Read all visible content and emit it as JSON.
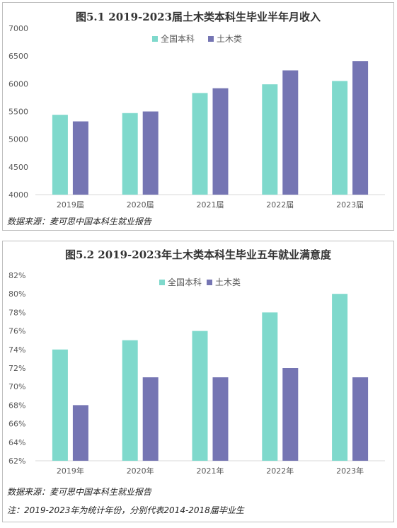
{
  "chart_data": [
    {
      "type": "bar",
      "title": "图5.1 2019-2023届土木类本科生毕业半年月收入",
      "categories": [
        "2019届",
        "2020届",
        "2021届",
        "2022届",
        "2023届"
      ],
      "series": [
        {
          "name": "全国本科",
          "values": [
            5440,
            5471,
            5833,
            5990,
            6050
          ],
          "color": "#7fd9cc"
        },
        {
          "name": "土木类",
          "values": [
            5321,
            5500,
            5919,
            6241,
            6410
          ],
          "color": "#7575b3"
        }
      ],
      "ylim": [
        4000,
        7000
      ],
      "yticks": [
        4000,
        4500,
        5000,
        5500,
        6000,
        6500,
        7000
      ],
      "ytick_format": "{v}",
      "legend": "top",
      "grid": false,
      "source": "数据来源：麦可思中国本科生就业报告"
    },
    {
      "type": "bar",
      "title": "图5.2 2019-2023年土木类本科生毕业五年就业满意度",
      "categories": [
        "2019年",
        "2020年",
        "2021年",
        "2022年",
        "2023年"
      ],
      "series": [
        {
          "name": "全国本科",
          "values": [
            74,
            75,
            76,
            78,
            80
          ],
          "color": "#7fd9cc"
        },
        {
          "name": "土木类",
          "values": [
            68,
            71,
            71,
            72,
            71
          ],
          "color": "#7575b3"
        }
      ],
      "ylim": [
        62,
        82
      ],
      "yticks": [
        62,
        64,
        66,
        68,
        70,
        72,
        74,
        76,
        78,
        80,
        82
      ],
      "ytick_format": "{v}%",
      "legend": "top",
      "grid": false,
      "source": "数据来源：麦可思中国本科生就业报告",
      "note": "注：2019-2023年为统计年份，分别代表2014-2018届毕业生"
    }
  ]
}
